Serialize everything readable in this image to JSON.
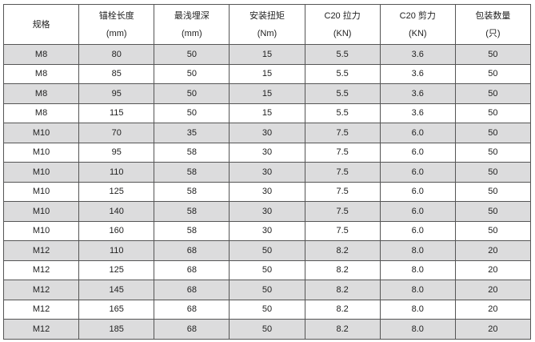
{
  "table": {
    "headers": [
      {
        "name": "规格",
        "unit": ""
      },
      {
        "name": "锚栓长度",
        "unit": "(mm)"
      },
      {
        "name": "最浅埋深",
        "unit": "(mm)"
      },
      {
        "name": "安装扭矩",
        "unit": "(Nm)"
      },
      {
        "name": "C20 拉力",
        "unit": "(KN)"
      },
      {
        "name": "C20 剪力",
        "unit": "(KN)"
      },
      {
        "name": "包装数量",
        "unit": "(只)"
      }
    ],
    "rows": [
      [
        "M8",
        "80",
        "50",
        "15",
        "5.5",
        "3.6",
        "50"
      ],
      [
        "M8",
        "85",
        "50",
        "15",
        "5.5",
        "3.6",
        "50"
      ],
      [
        "M8",
        "95",
        "50",
        "15",
        "5.5",
        "3.6",
        "50"
      ],
      [
        "M8",
        "115",
        "50",
        "15",
        "5.5",
        "3.6",
        "50"
      ],
      [
        "M10",
        "70",
        "35",
        "30",
        "7.5",
        "6.0",
        "50"
      ],
      [
        "M10",
        "95",
        "58",
        "30",
        "7.5",
        "6.0",
        "50"
      ],
      [
        "M10",
        "110",
        "58",
        "30",
        "7.5",
        "6.0",
        "50"
      ],
      [
        "M10",
        "125",
        "58",
        "30",
        "7.5",
        "6.0",
        "50"
      ],
      [
        "M10",
        "140",
        "58",
        "30",
        "7.5",
        "6.0",
        "50"
      ],
      [
        "M10",
        "160",
        "58",
        "30",
        "7.5",
        "6.0",
        "50"
      ],
      [
        "M12",
        "110",
        "68",
        "50",
        "8.2",
        "8.0",
        "20"
      ],
      [
        "M12",
        "125",
        "68",
        "50",
        "8.2",
        "8.0",
        "20"
      ],
      [
        "M12",
        "145",
        "68",
        "50",
        "8.2",
        "8.0",
        "20"
      ],
      [
        "M12",
        "165",
        "68",
        "50",
        "8.2",
        "8.0",
        "20"
      ],
      [
        "M12",
        "185",
        "68",
        "50",
        "8.2",
        "8.0",
        "20"
      ]
    ],
    "stripe_color": "#dcdcdd",
    "border_color": "#555555"
  }
}
